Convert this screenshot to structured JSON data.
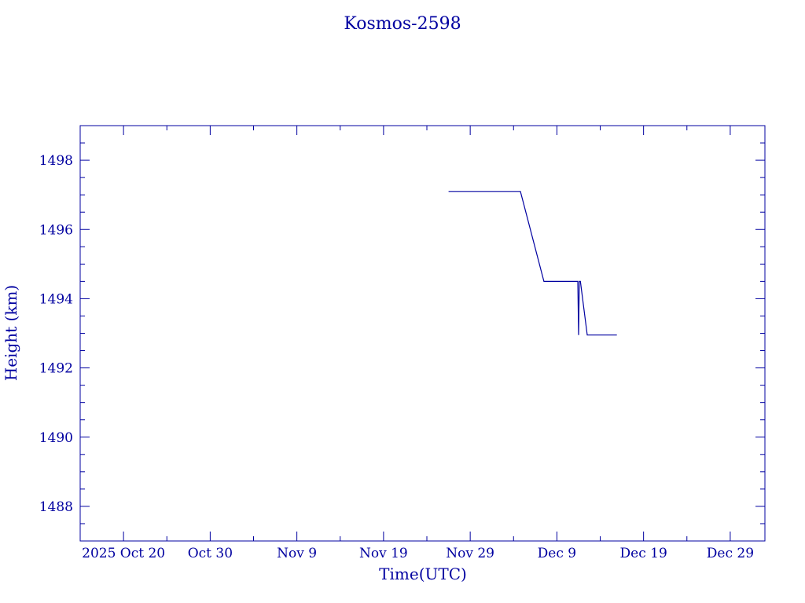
{
  "chart_data": {
    "type": "line",
    "title": "Kosmos-2598",
    "xlabel": "Time(UTC)",
    "ylabel": "Height (km)",
    "ylim": [
      1487.0,
      1499.0
    ],
    "xlim": [
      "2025-10-15",
      "2026-01-02"
    ],
    "x_tick_labels": [
      "2025 Oct 20",
      "Oct 30",
      "Nov  9",
      "Nov 19",
      "Nov 29",
      "Dec  9",
      "Dec 19",
      "Dec 29"
    ],
    "x_tick_dates": [
      "2025-10-20",
      "2025-10-30",
      "2025-11-09",
      "2025-11-19",
      "2025-11-29",
      "2025-12-09",
      "2025-12-19",
      "2025-12-29"
    ],
    "y_tick_labels": [
      "1488",
      "1490",
      "1492",
      "1494",
      "1496",
      "1498"
    ],
    "y_ticks": [
      1488,
      1490,
      1492,
      1494,
      1496,
      1498
    ],
    "grid": false,
    "color": "#0000a0",
    "series": [
      {
        "x": [
          "2025-11-26 12:00",
          "2025-12-04 19:00",
          "2025-12-07 12:00",
          "2025-12-11 10:00",
          "2025-12-11 12:00",
          "2025-12-11 14:00",
          "2025-12-11 17:00",
          "2025-12-12 12:00",
          "2025-12-15 22:00"
        ],
        "y": [
          1497.1,
          1497.1,
          1494.5,
          1494.5,
          1492.95,
          1494.5,
          1494.5,
          1492.95,
          1492.95
        ]
      }
    ]
  }
}
